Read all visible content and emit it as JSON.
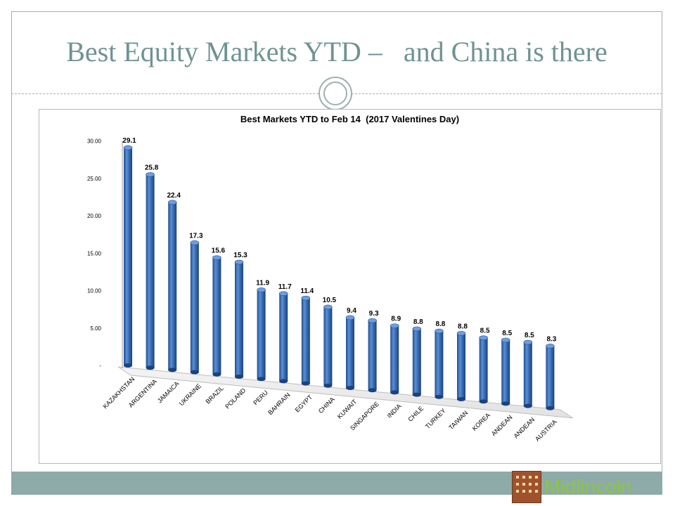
{
  "slide": {
    "title": "Best Equity Markets YTD –   and China is there",
    "logo_text": "Midlincoln",
    "colors": {
      "title": "#6f9392",
      "bar": "#3b6fb6",
      "footer": "#8eaaa9",
      "logo": "#8dc63f"
    }
  },
  "chart_data": {
    "type": "bar",
    "title": "Best Markets YTD to Feb 14  (2017 Valentines Day)",
    "categories": [
      "KAZAKHSTAN",
      "ARGENTINA",
      "JAMAICA",
      "UKRAINE",
      "BRAZIL",
      "POLAND",
      "PERU",
      "BAHRAIN",
      "EGYPT",
      "CHINA",
      "KUWAIT",
      "SINGAPORE",
      "INDIA",
      "CHILE",
      "TURKEY",
      "TAIWAN",
      "KOREA",
      "ANDEAN",
      "ANDEAN",
      "AUSTRIA"
    ],
    "values": [
      29.1,
      25.8,
      22.4,
      17.3,
      15.6,
      15.3,
      11.9,
      11.7,
      11.4,
      10.5,
      9.4,
      9.3,
      8.9,
      8.8,
      8.8,
      8.8,
      8.5,
      8.5,
      8.5,
      8.3
    ],
    "data_labels": [
      "29.1",
      "25.8",
      "22.4",
      "17.3",
      "15.6",
      "15.3",
      "11.9",
      "11.7",
      "11.4",
      "10.5",
      "9.4",
      "9.3",
      "8.9",
      "8.8",
      "8.8",
      "8.8",
      "8.5",
      "8.5",
      "8.5",
      "8.3"
    ],
    "y_ticks": [
      {
        "value": 0,
        "label": "-"
      },
      {
        "value": 5,
        "label": "5.00"
      },
      {
        "value": 10,
        "label": "10.00"
      },
      {
        "value": 15,
        "label": "15.00"
      },
      {
        "value": 20,
        "label": "20.00"
      },
      {
        "value": 25,
        "label": "25.00"
      },
      {
        "value": 30,
        "label": "30.00"
      }
    ],
    "ylim": [
      0,
      30
    ],
    "xlabel": "",
    "ylabel": "",
    "grid": false,
    "legend": "none",
    "style": "3d-cylinder"
  }
}
